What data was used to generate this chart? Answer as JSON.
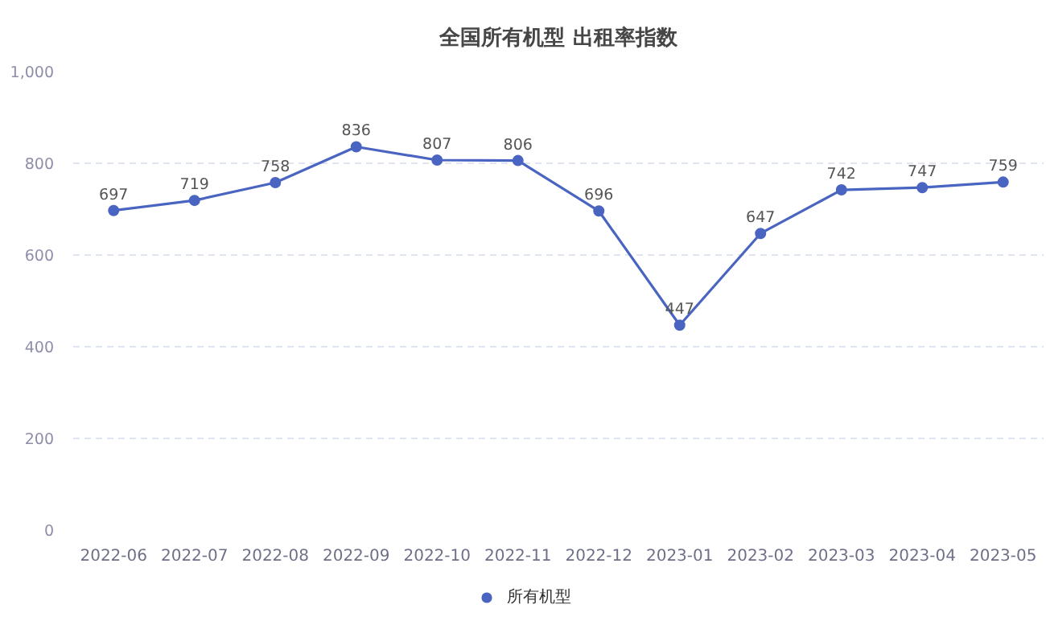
{
  "chart_data": {
    "type": "line",
    "title": "全国所有机型 出租率指数",
    "categories": [
      "2022-06",
      "2022-07",
      "2022-08",
      "2022-09",
      "2022-10",
      "2022-11",
      "2022-12",
      "2023-01",
      "2023-02",
      "2023-03",
      "2023-04",
      "2023-05"
    ],
    "series": [
      {
        "name": "所有机型",
        "color": "#4a65c1",
        "values": [
          697,
          719,
          758,
          836,
          807,
          806,
          696,
          447,
          647,
          742,
          747,
          759
        ]
      }
    ],
    "ylim": [
      0,
      1000
    ],
    "yticks": [
      0,
      200,
      400,
      600,
      800,
      {
        "value": 1000,
        "label": "1,000"
      }
    ],
    "grid": "y",
    "legend": "bottom",
    "marker": "circle",
    "line_style": "solid",
    "data_labels": true
  }
}
